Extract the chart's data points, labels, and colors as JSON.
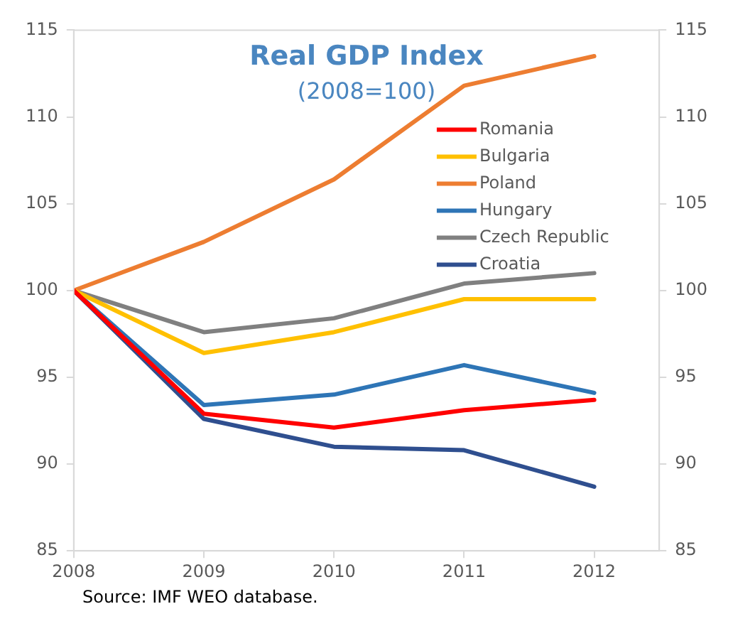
{
  "chart_data": {
    "type": "line",
    "title": "Real GDP Index",
    "subtitle": "(2008=100)",
    "x": [
      2008,
      2009,
      2010,
      2011,
      2012
    ],
    "series": [
      {
        "name": "Romania",
        "color": "#ff0000",
        "values": [
          100,
          92.9,
          92.1,
          93.1,
          93.7
        ]
      },
      {
        "name": "Bulgaria",
        "color": "#ffc000",
        "values": [
          100,
          96.4,
          97.6,
          99.5,
          99.5
        ]
      },
      {
        "name": "Poland",
        "color": "#ed7d31",
        "values": [
          100,
          102.8,
          106.4,
          111.8,
          113.5
        ]
      },
      {
        "name": "Hungary",
        "color": "#2e75b6",
        "values": [
          100,
          93.4,
          94.0,
          95.7,
          94.1
        ]
      },
      {
        "name": "Czech Republic",
        "color": "#808080",
        "values": [
          100,
          97.6,
          98.4,
          100.4,
          101.0
        ]
      },
      {
        "name": "Croatia",
        "color": "#2f4f8f",
        "values": [
          100,
          92.6,
          91.0,
          90.8,
          88.7
        ]
      }
    ],
    "xlim": [
      2008,
      2012.5
    ],
    "xticks": [
      2008,
      2009,
      2010,
      2011,
      2012
    ],
    "ylim": [
      85,
      115
    ],
    "yticks": [
      85,
      90,
      95,
      100,
      105,
      110,
      115
    ],
    "y2lim": [
      85,
      115
    ],
    "y2ticks": [
      85,
      90,
      95,
      100,
      105,
      110,
      115
    ],
    "legend": "top right",
    "marker": "none",
    "line_style": "solid",
    "annotations": [
      "Source: IMF WEO database."
    ]
  }
}
